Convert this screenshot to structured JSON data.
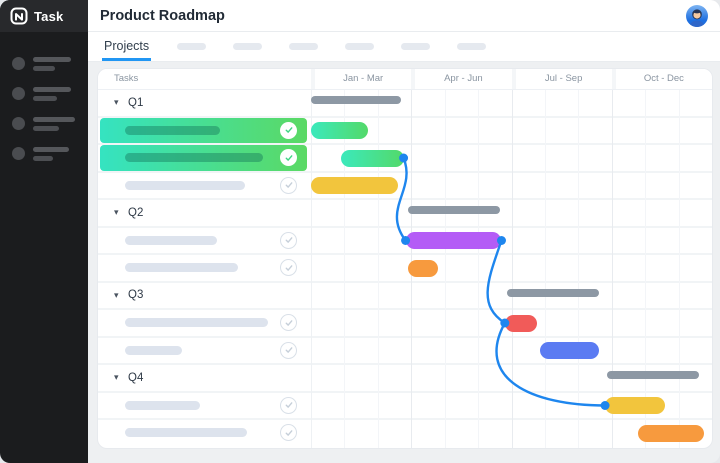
{
  "window": {
    "title": "Product Roadmap"
  },
  "logo": {
    "text": "Task"
  },
  "tabs": {
    "active_label": "Projects",
    "placeholder_tab_count": 6
  },
  "sidebar": {
    "placeholder_item_count": 4
  },
  "gantt": {
    "tasks_column_label": "Tasks",
    "quarter_labels": [
      "Jan - Mar",
      "Apr - Jun",
      "Jul - Sep",
      "Oct - Dec"
    ],
    "months_total": 12,
    "rows": [
      {
        "type": "group",
        "label": "Q1"
      },
      {
        "type": "task",
        "completed": true,
        "highlight": true,
        "placeholder_width_pct": 63
      },
      {
        "type": "task",
        "completed": true,
        "highlight": true,
        "placeholder_width_pct": 92
      },
      {
        "type": "task",
        "completed": false,
        "highlight": false,
        "placeholder_width_pct": 80
      },
      {
        "type": "group",
        "label": "Q2"
      },
      {
        "type": "task",
        "completed": false,
        "highlight": false,
        "placeholder_width_pct": 61
      },
      {
        "type": "task",
        "completed": false,
        "highlight": false,
        "placeholder_width_pct": 75
      },
      {
        "type": "group",
        "label": "Q3"
      },
      {
        "type": "task",
        "completed": false,
        "highlight": false,
        "placeholder_width_pct": 95
      },
      {
        "type": "task",
        "completed": false,
        "highlight": false,
        "placeholder_width_pct": 38
      },
      {
        "type": "group",
        "label": "Q4"
      },
      {
        "type": "task",
        "completed": false,
        "highlight": false,
        "placeholder_width_pct": 50
      },
      {
        "type": "task",
        "completed": false,
        "highlight": false,
        "placeholder_width_pct": 81
      }
    ],
    "bars": [
      {
        "row": 0,
        "kind": "summary",
        "start_month": 0.0,
        "end_month": 2.7
      },
      {
        "row": 1,
        "kind": "task",
        "color": "green",
        "start_month": 0.0,
        "end_month": 1.7,
        "dots": []
      },
      {
        "row": 2,
        "kind": "task",
        "color": "green",
        "start_month": 0.9,
        "end_month": 2.77,
        "dots": [
          "end"
        ]
      },
      {
        "row": 3,
        "kind": "task",
        "color": "yellow",
        "start_month": 0.0,
        "end_month": 2.6,
        "dots": []
      },
      {
        "row": 4,
        "kind": "summary",
        "start_month": 2.9,
        "end_month": 5.66
      },
      {
        "row": 5,
        "kind": "task",
        "color": "purple",
        "start_month": 2.83,
        "end_month": 5.7,
        "dots": [
          "start",
          "end"
        ]
      },
      {
        "row": 6,
        "kind": "task",
        "color": "orange",
        "start_month": 2.9,
        "end_month": 3.8,
        "dots": []
      },
      {
        "row": 7,
        "kind": "summary",
        "start_month": 5.86,
        "end_month": 8.63
      },
      {
        "row": 8,
        "kind": "task",
        "color": "red",
        "start_month": 5.8,
        "end_month": 6.75,
        "dots": [
          "start"
        ]
      },
      {
        "row": 9,
        "kind": "task",
        "color": "blue",
        "start_month": 6.85,
        "end_month": 8.63,
        "dots": []
      },
      {
        "row": 10,
        "kind": "summary",
        "start_month": 8.87,
        "end_month": 11.6
      },
      {
        "row": 11,
        "kind": "task",
        "color": "yellow",
        "start_month": 8.8,
        "end_month": 10.6,
        "dots": [
          "start"
        ]
      },
      {
        "row": 12,
        "kind": "task",
        "color": "orange",
        "start_month": 9.8,
        "end_month": 11.75,
        "dots": []
      }
    ],
    "connectors": [
      {
        "from_bar": 2,
        "from_point": "end",
        "to_bar": 5,
        "to_point": "start",
        "curve": [
          13,
          32,
          -24,
          -32
        ]
      },
      {
        "from_bar": 5,
        "from_point": "end",
        "to_bar": 8,
        "to_point": "start",
        "curve": [
          -13,
          38,
          -28,
          -18
        ]
      },
      {
        "from_bar": 8,
        "from_point": "start",
        "to_bar": 11,
        "to_point": "start",
        "curve": [
          -30,
          55,
          -75,
          0
        ]
      }
    ]
  },
  "colors": {
    "accent_blue": "#2196F3",
    "connector": "#1E86EE",
    "summary_gray": "#8D98A4",
    "green_start": "#3BE9BC",
    "green_end": "#53D969",
    "yellow": "#F2C53D",
    "purple": "#B45CF6",
    "orange": "#F79A3E",
    "red": "#F15B59",
    "blue": "#5B7BF2",
    "check_done": "#3FD584",
    "check_todo": "#C6CFD9"
  }
}
